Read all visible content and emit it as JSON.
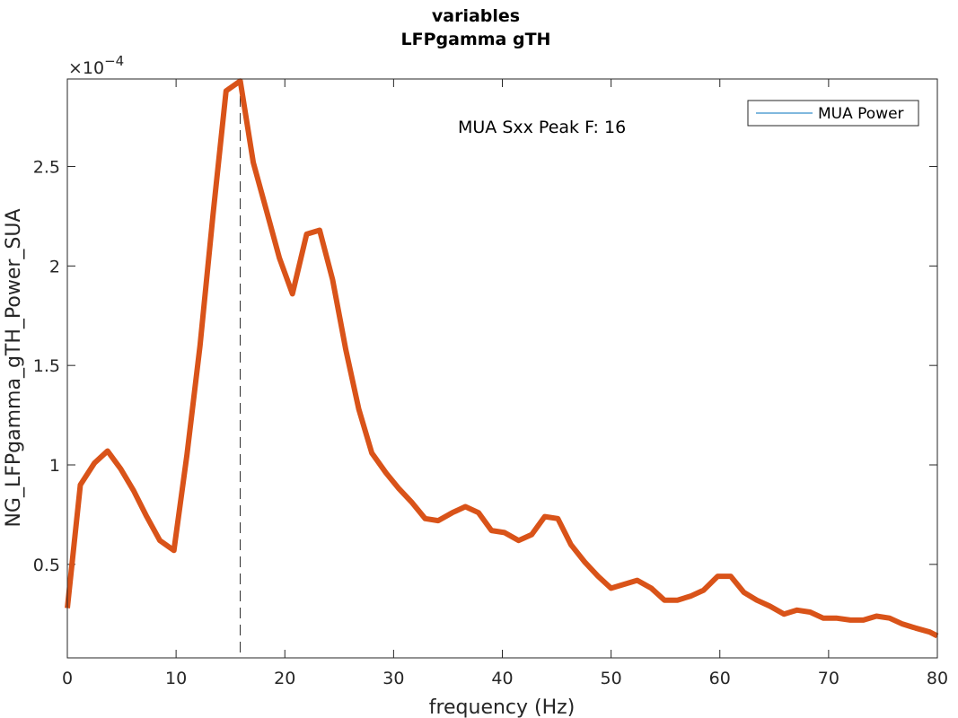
{
  "chart_data": {
    "type": "line",
    "title": "variables",
    "subtitle": "LFPgamma gTH",
    "xlabel": "frequency (Hz)",
    "ylabel": "NG_LFPgamma_gTH_Power_SUA",
    "y_exponent_label": "×10",
    "y_exponent_power": "−4",
    "xlim": [
      0,
      80
    ],
    "ylim": [
      0.03,
      2.94
    ],
    "x_ticks": [
      0,
      10,
      20,
      30,
      40,
      50,
      60,
      70,
      80
    ],
    "x_tick_labels": [
      "0",
      "10",
      "20",
      "30",
      "40",
      "50",
      "60",
      "70",
      "80"
    ],
    "y_ticks": [
      0.5,
      1,
      1.5,
      2,
      2.5
    ],
    "y_tick_labels": [
      "0.5",
      "1",
      "1.5",
      "2",
      "2.5"
    ],
    "grid": false,
    "legend": {
      "location": "top-right",
      "entries": [
        {
          "name": "MUA Power",
          "color": "#0072BD"
        }
      ]
    },
    "annotation": "MUA Sxx Peak F: 16",
    "peak_line_x": 15.9,
    "series": [
      {
        "color": "#D95319",
        "x": [
          0,
          1.2,
          2.5,
          3.7,
          4.9,
          6.1,
          7.3,
          8.5,
          9.8,
          11.0,
          12.2,
          13.4,
          14.6,
          15.9,
          17.1,
          18.3,
          19.5,
          20.7,
          22.0,
          23.2,
          24.4,
          25.6,
          26.8,
          28.0,
          29.3,
          30.5,
          31.7,
          32.9,
          34.1,
          35.4,
          36.6,
          37.8,
          39.0,
          40.2,
          41.5,
          42.7,
          43.9,
          45.1,
          46.3,
          47.6,
          48.8,
          50.0,
          51.2,
          52.4,
          53.7,
          54.9,
          56.1,
          57.3,
          58.5,
          59.8,
          61.0,
          62.2,
          63.4,
          64.6,
          65.9,
          67.1,
          68.3,
          69.5,
          70.7,
          72.0,
          73.2,
          74.4,
          75.6,
          76.8,
          78.0,
          79.3,
          80.0
        ],
        "y": [
          0.28,
          0.9,
          1.01,
          1.07,
          0.98,
          0.87,
          0.74,
          0.62,
          0.57,
          1.05,
          1.6,
          2.26,
          2.88,
          2.93,
          2.52,
          2.28,
          2.04,
          1.86,
          2.16,
          2.18,
          1.93,
          1.58,
          1.28,
          1.06,
          0.96,
          0.88,
          0.81,
          0.73,
          0.72,
          0.76,
          0.79,
          0.76,
          0.67,
          0.66,
          0.62,
          0.65,
          0.74,
          0.73,
          0.6,
          0.51,
          0.44,
          0.38,
          0.4,
          0.42,
          0.38,
          0.32,
          0.32,
          0.34,
          0.37,
          0.44,
          0.44,
          0.36,
          0.32,
          0.29,
          0.25,
          0.27,
          0.26,
          0.23,
          0.23,
          0.22,
          0.22,
          0.24,
          0.23,
          0.2,
          0.18,
          0.16,
          0.14
        ]
      }
    ]
  }
}
